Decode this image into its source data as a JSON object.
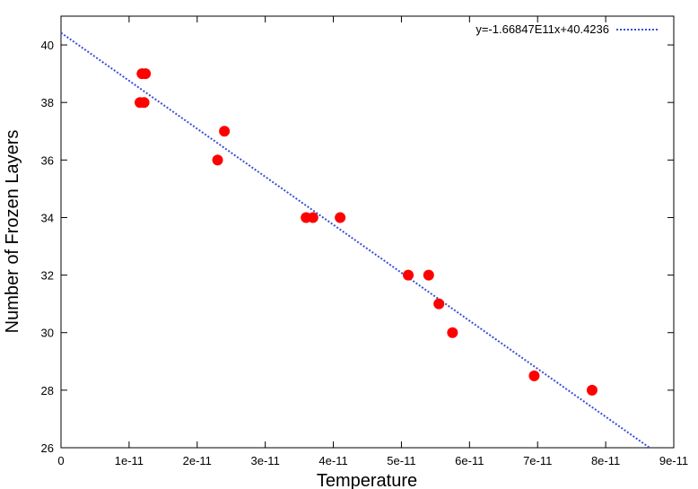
{
  "chart_data": {
    "type": "scatter",
    "xlabel": "Temperature",
    "ylabel": "Number of Frozen Layers",
    "xlim": [
      0,
      9e-11
    ],
    "ylim": [
      26,
      41
    ],
    "x_ticks": [
      0,
      1e-11,
      2e-11,
      3e-11,
      4e-11,
      5e-11,
      6e-11,
      7e-11,
      8e-11,
      9e-11
    ],
    "x_tick_labels": [
      "0",
      "1e-11",
      "2e-11",
      "3e-11",
      "4e-11",
      "5e-11",
      "6e-11",
      "7e-11",
      "8e-11",
      "9e-11"
    ],
    "y_ticks": [
      26,
      28,
      30,
      32,
      34,
      36,
      38,
      40
    ],
    "y_tick_labels": [
      "26",
      "28",
      "30",
      "32",
      "34",
      "36",
      "38",
      "40"
    ],
    "grid": false,
    "legend_position": "top-right",
    "series": [
      {
        "kind": "points",
        "color": "#ff0000",
        "points": [
          {
            "x": 1.16e-11,
            "y": 38
          },
          {
            "x": 1.22e-11,
            "y": 38
          },
          {
            "x": 1.19e-11,
            "y": 39
          },
          {
            "x": 1.24e-11,
            "y": 39
          },
          {
            "x": 2.3e-11,
            "y": 36
          },
          {
            "x": 2.4e-11,
            "y": 37
          },
          {
            "x": 3.6e-11,
            "y": 34
          },
          {
            "x": 3.7e-11,
            "y": 34
          },
          {
            "x": 4.1e-11,
            "y": 34
          },
          {
            "x": 5.1e-11,
            "y": 32
          },
          {
            "x": 5.4e-11,
            "y": 32
          },
          {
            "x": 5.55e-11,
            "y": 31
          },
          {
            "x": 5.75e-11,
            "y": 30
          },
          {
            "x": 6.95e-11,
            "y": 28.5
          },
          {
            "x": 7.8e-11,
            "y": 28
          }
        ]
      },
      {
        "kind": "fit-line",
        "name": "y=-1.66847E11x+40.4236",
        "color": "#3a4fd8",
        "slope": -166847000000,
        "intercept": 40.4236
      }
    ]
  }
}
